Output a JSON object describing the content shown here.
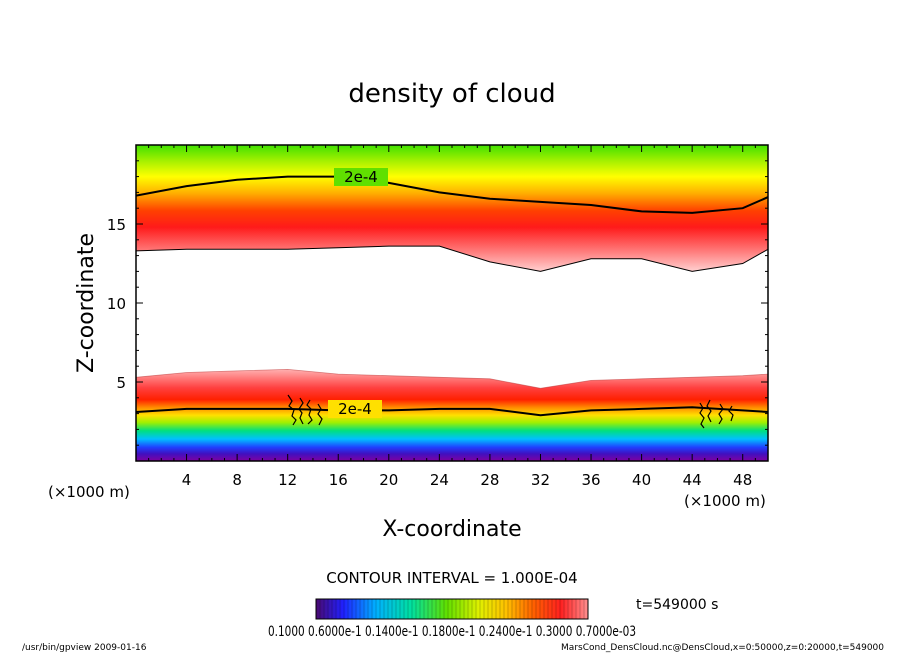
{
  "chart_data": {
    "type": "heatmap",
    "title": "density of cloud",
    "xlabel": "X-coordinate",
    "ylabel": "Z-coordinate",
    "x_unit_left": "(×1000 m)",
    "x_unit_right": "(×1000 m)",
    "xlim": [
      0,
      50
    ],
    "ylim": [
      0,
      20
    ],
    "x_ticks": [
      4,
      8,
      12,
      16,
      20,
      24,
      28,
      32,
      36,
      40,
      44,
      48
    ],
    "x_tick_labels": [
      "4",
      "8",
      "12",
      "16",
      "20",
      "24",
      "28",
      "32",
      "36",
      "40",
      "44",
      "48"
    ],
    "y_ticks": [
      5,
      10,
      15
    ],
    "y_tick_labels": [
      "5",
      "10",
      "15"
    ],
    "contour_label": "2e-4",
    "contour_labels_shown": [
      "2e-4",
      "2e-4"
    ],
    "contour_interval_text": "CONTOUR INTERVAL = 1.000E-04",
    "time_text": "t=549000 s",
    "colorbar_labels_text": "0.1000 0.6000e-1 0.1400e-1 0.1800e-1 0.2400e-1 0.3000 0.7000e-03",
    "colorbar_colors": [
      "#6a0fa0",
      "#2020ff",
      "#00b0ff",
      "#00e0a0",
      "#40e000",
      "#c0f000",
      "#ffe000",
      "#ffa000",
      "#ff4000",
      "#ff1010",
      "#ff8080"
    ],
    "upper_band": {
      "x": [
        0,
        4,
        8,
        12,
        16,
        20,
        24,
        28,
        32,
        36,
        40,
        44,
        48,
        50
      ],
      "contour_2e4_z": [
        16.8,
        17.4,
        17.8,
        18.0,
        18.0,
        17.6,
        17.0,
        16.6,
        16.4,
        16.2,
        15.8,
        15.7,
        16.0,
        16.7
      ],
      "lower_edge_z": [
        13.3,
        13.4,
        13.4,
        13.4,
        13.5,
        13.6,
        13.6,
        12.6,
        12.0,
        12.8,
        12.8,
        12.0,
        12.5,
        13.4
      ]
    },
    "lower_band": {
      "x": [
        0,
        4,
        8,
        12,
        16,
        20,
        24,
        28,
        32,
        36,
        40,
        44,
        48,
        50
      ],
      "top_edge_z": [
        5.3,
        5.6,
        5.7,
        5.8,
        5.5,
        5.4,
        5.3,
        5.2,
        4.6,
        5.1,
        5.2,
        5.3,
        5.4,
        5.5
      ],
      "contour_2e4_z": [
        3.1,
        3.3,
        3.3,
        3.3,
        3.2,
        3.2,
        3.3,
        3.3,
        2.9,
        3.2,
        3.3,
        3.4,
        3.2,
        3.1
      ]
    }
  },
  "footer": {
    "left": "/usr/bin/gpview   2009-01-16",
    "right": "MarsCond_DensCloud.nc@DensCloud,x=0:50000,z=0:20000,t=549000"
  }
}
